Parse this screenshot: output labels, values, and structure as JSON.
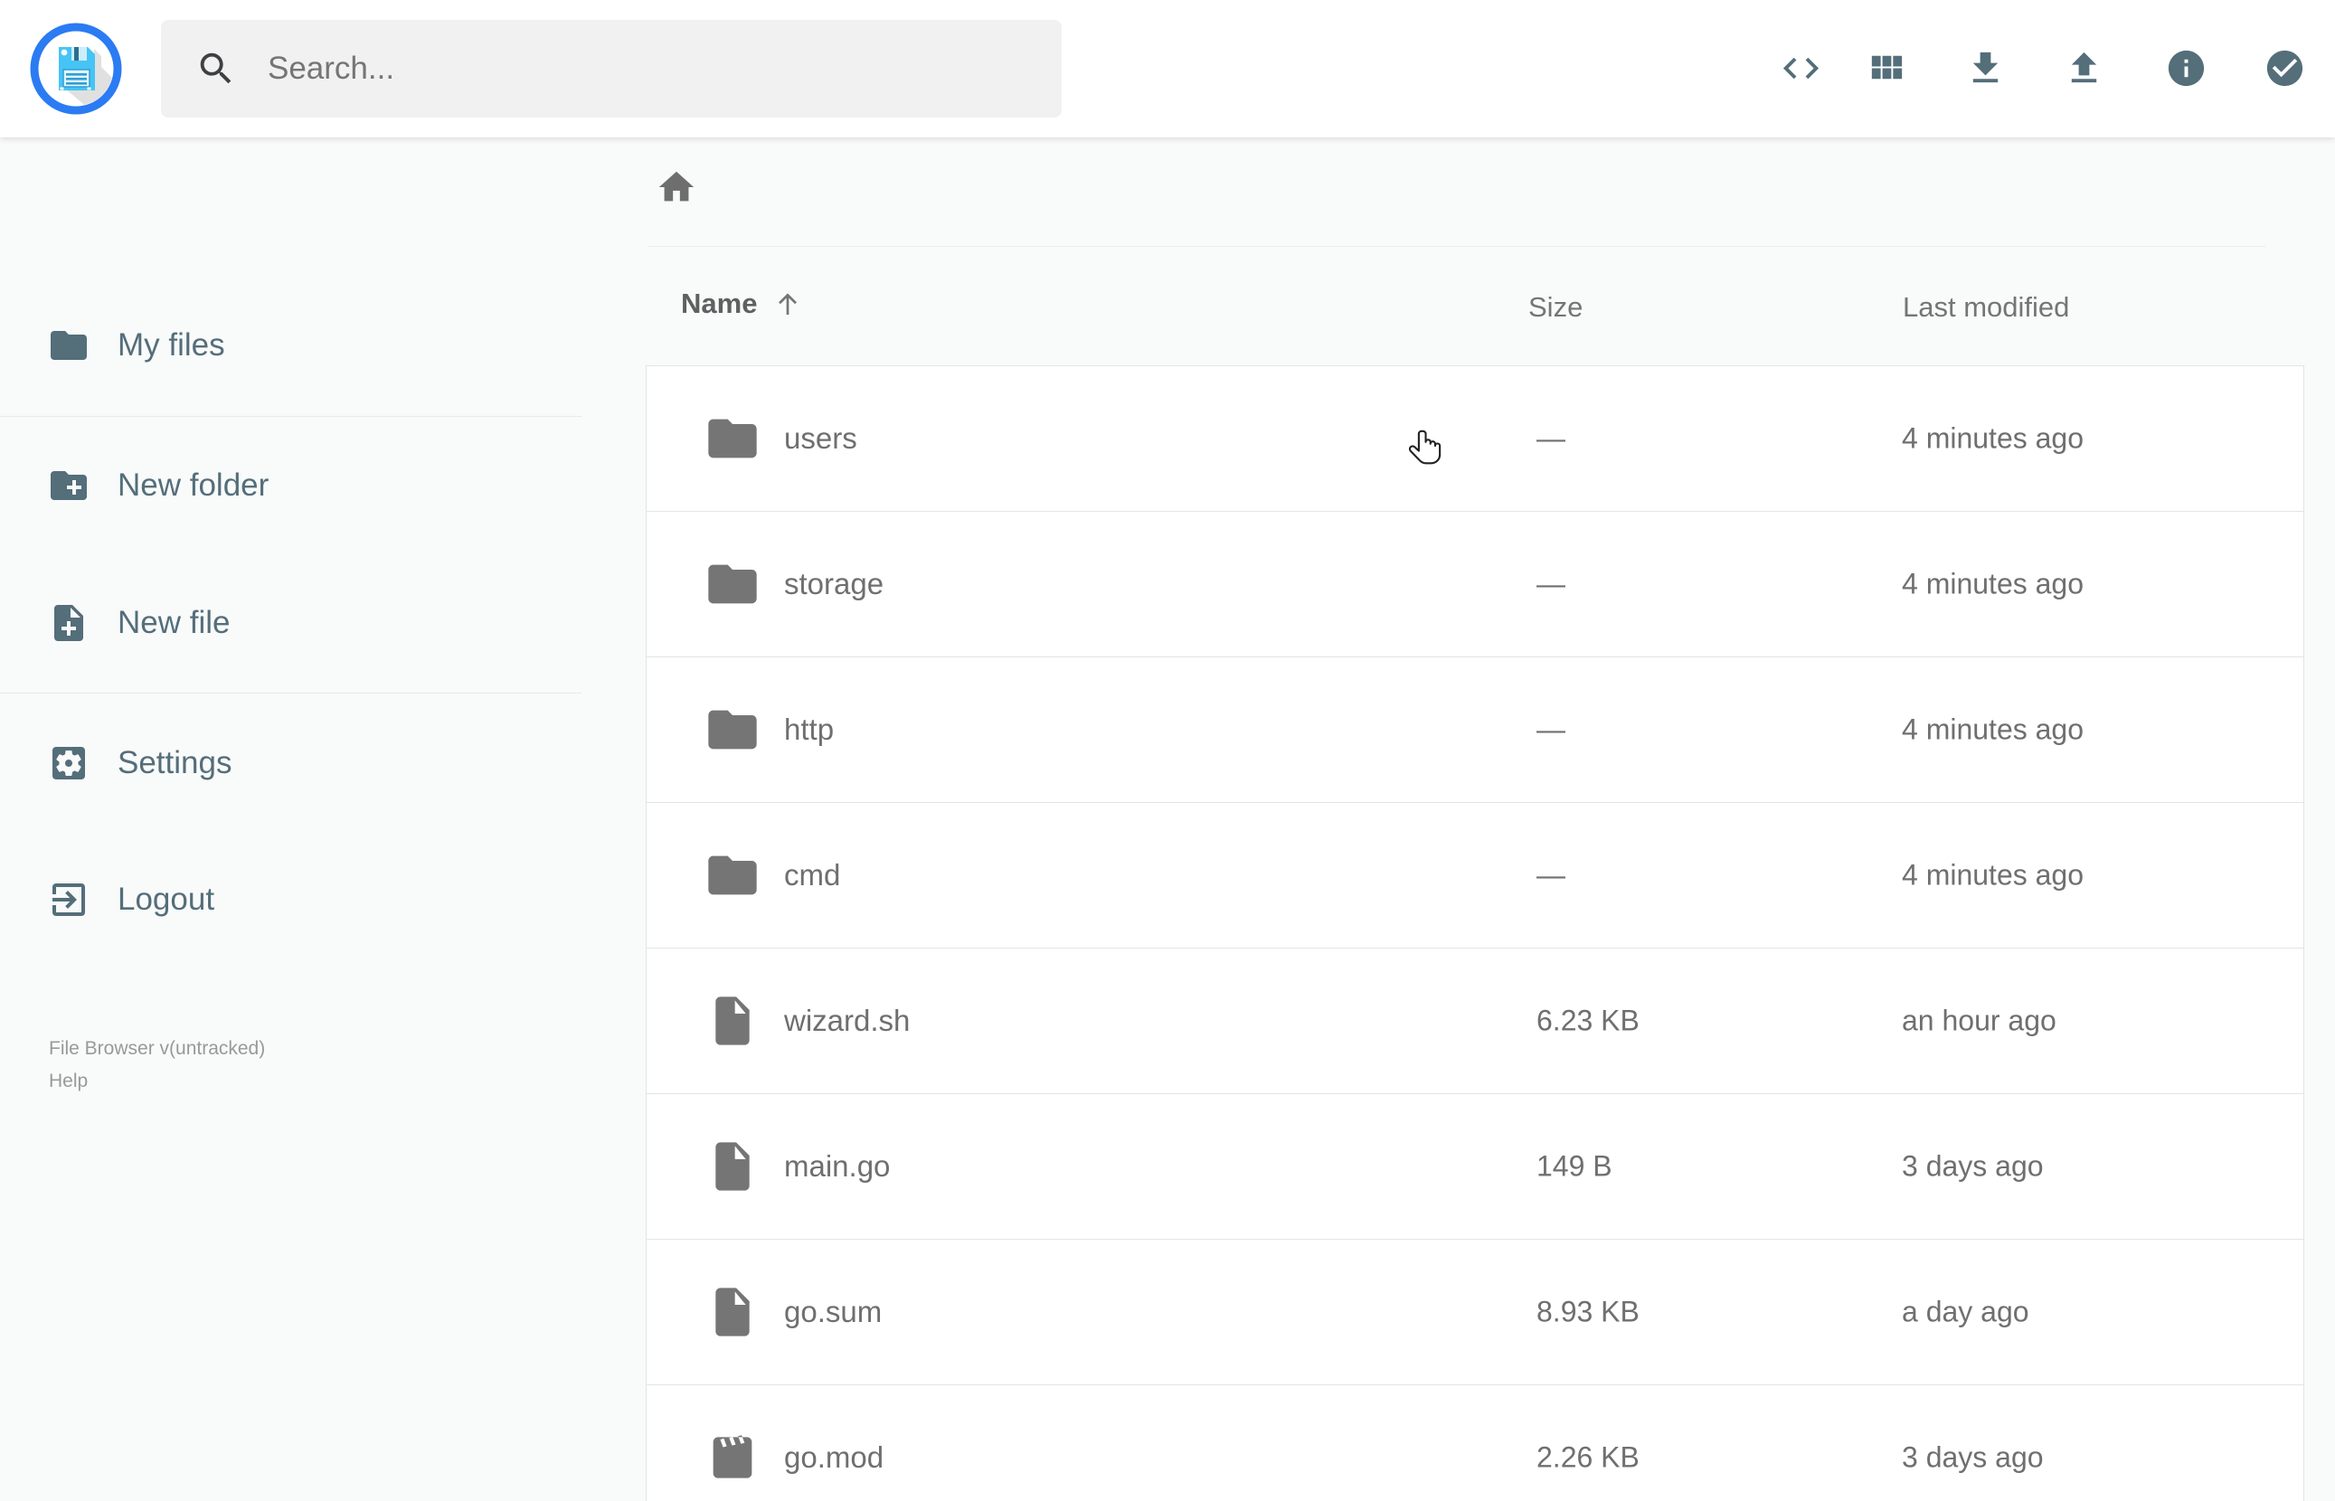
{
  "app": "File Browser",
  "logo": "file-browser-floppy-logo",
  "header": {
    "search": {
      "placeholder": "Search...",
      "icon": "search-icon"
    },
    "toolbar": [
      {
        "icon": "code-icon",
        "name": "switch-view-code"
      },
      {
        "icon": "grid-view-icon",
        "name": "switch-view-grid"
      },
      {
        "icon": "download-icon",
        "name": "download"
      },
      {
        "icon": "upload-icon",
        "name": "upload"
      },
      {
        "icon": "info-icon",
        "name": "file-information"
      },
      {
        "icon": "check-circle-icon",
        "name": "select-multiple"
      }
    ]
  },
  "sidebar": {
    "items": [
      {
        "icon": "folder-icon",
        "label": "My files"
      },
      {
        "icon": "new-folder-icon",
        "label": "New folder"
      },
      {
        "icon": "new-file-icon",
        "label": "New file"
      },
      {
        "icon": "settings-icon",
        "label": "Settings"
      },
      {
        "icon": "logout-icon",
        "label": "Logout"
      }
    ],
    "footer": {
      "version": "File Browser v(untracked)",
      "help": "Help"
    }
  },
  "breadcrumb": {
    "home_icon": "home-icon"
  },
  "listing": {
    "columns": {
      "name": "Name",
      "size": "Size",
      "modified": "Last modified"
    },
    "sort": {
      "column": "name",
      "direction": "ascending",
      "icon": "arrow-up-icon"
    },
    "rows": [
      {
        "name": "users",
        "type": "folder",
        "size": "—",
        "modified": "4 minutes ago"
      },
      {
        "name": "storage",
        "type": "folder",
        "size": "—",
        "modified": "4 minutes ago"
      },
      {
        "name": "http",
        "type": "folder",
        "size": "—",
        "modified": "4 minutes ago"
      },
      {
        "name": "cmd",
        "type": "folder",
        "size": "—",
        "modified": "4 minutes ago"
      },
      {
        "name": "wizard.sh",
        "type": "file",
        "size": "6.23 KB",
        "modified": "an hour ago"
      },
      {
        "name": "main.go",
        "type": "file",
        "size": "149 B",
        "modified": "3 days ago"
      },
      {
        "name": "go.sum",
        "type": "file",
        "size": "8.93 KB",
        "modified": "a day ago"
      },
      {
        "name": "go.mod",
        "type": "mod",
        "size": "2.26 KB",
        "modified": "3 days ago"
      }
    ]
  },
  "pointer": {
    "type": "hand-cursor"
  },
  "colors": {
    "accent_slate": "#546e7a",
    "logo_blue": "#2b7bf3",
    "logo_cyan": "#45c4f5",
    "row_text": "#6f6f6f",
    "row_border": "#e4e4e4",
    "search_bg": "#f1f1f1",
    "background": "#f9fafa"
  }
}
